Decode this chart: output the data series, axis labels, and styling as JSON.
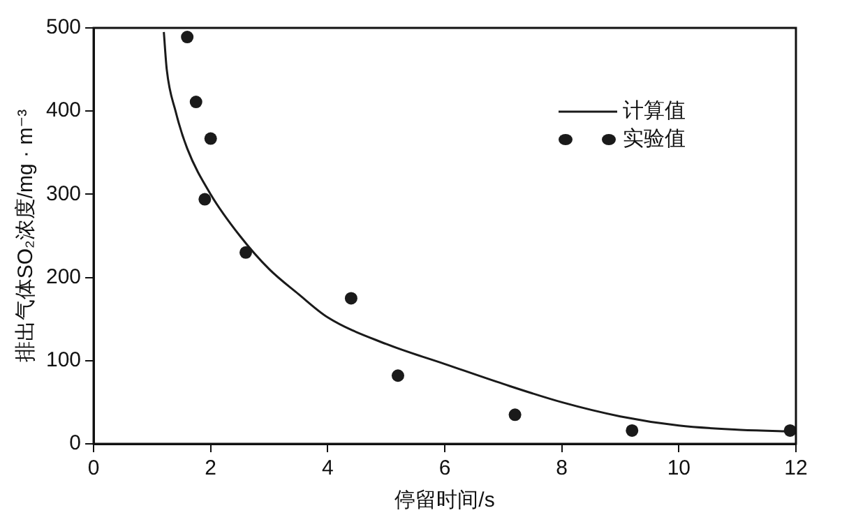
{
  "chart_data": {
    "type": "scatter",
    "xlabel": "停留时间/s",
    "ylabel": "排出气体SO₂浓度/mg · m⁻³",
    "series": [
      {
        "name": "计算值",
        "type": "line",
        "color": "#1a1a1a",
        "marker": "none",
        "line_style": "solid",
        "x": [
          1.2,
          1.25,
          1.4,
          1.6,
          2,
          2.5,
          3,
          3.5,
          4,
          5,
          6,
          7,
          8,
          9,
          10,
          11,
          11.9
        ],
        "values": [
          495,
          450,
          400,
          355,
          300,
          250,
          210,
          180,
          152,
          120,
          96,
          72,
          50,
          33,
          22,
          17,
          15
        ]
      },
      {
        "name": "实验值",
        "color": "#1a1a1a",
        "marker": "circle",
        "x": [
          1.6,
          1.75,
          2.0,
          1.9,
          2.6,
          4.4,
          5.2,
          7.2,
          9.2,
          11.9
        ],
        "values": [
          489,
          411,
          367,
          294,
          230,
          175,
          82,
          35,
          16,
          16
        ]
      }
    ],
    "xlim": [
      0,
      12
    ],
    "xticks": [
      0,
      2,
      4,
      6,
      8,
      10,
      12
    ],
    "ylim": [
      0,
      500
    ],
    "yticks": [
      0,
      100,
      200,
      300,
      400,
      500
    ],
    "grid": false,
    "legend": "top right"
  }
}
